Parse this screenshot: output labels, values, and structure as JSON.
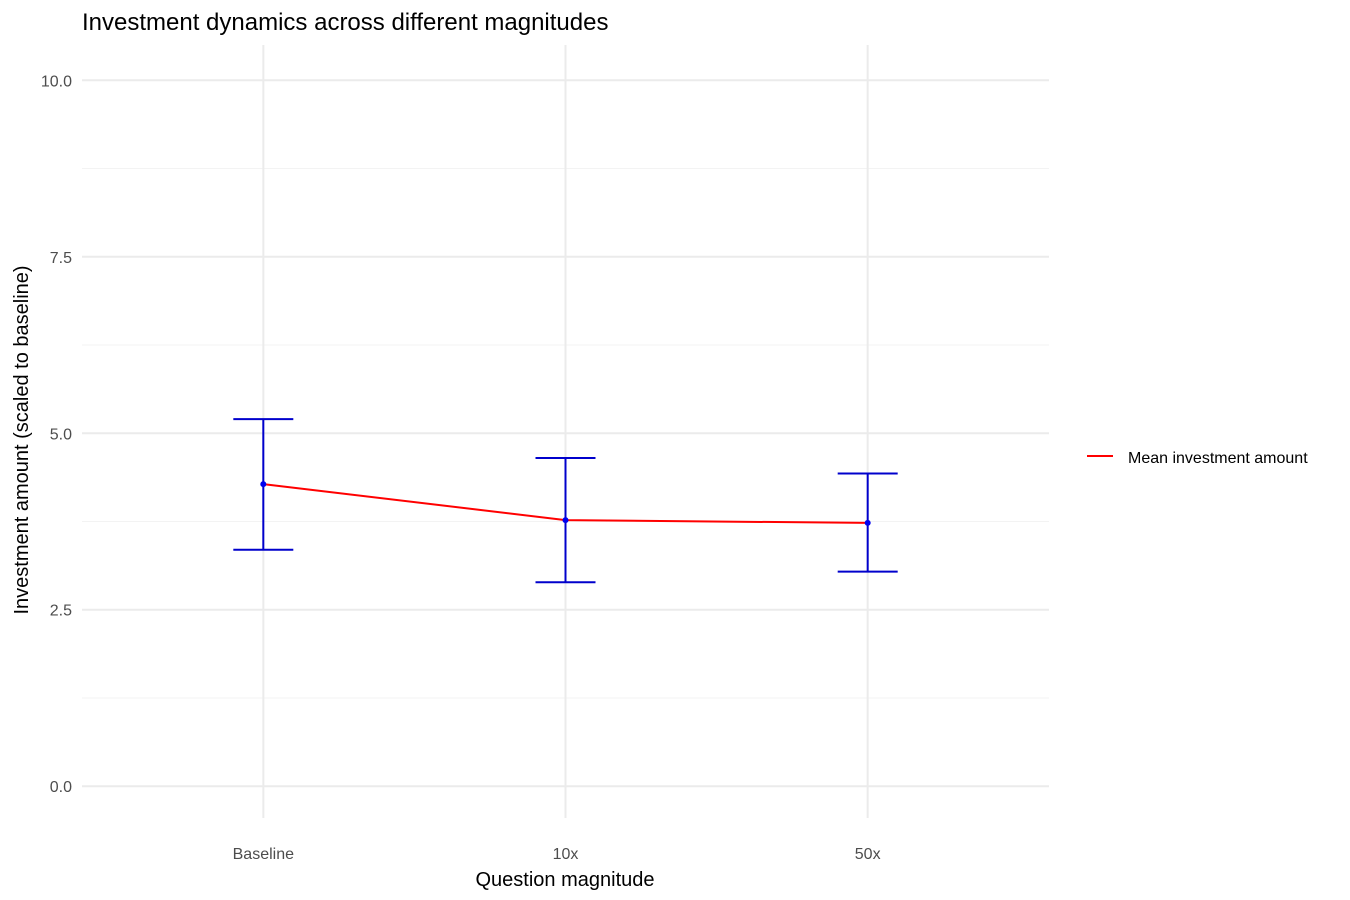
{
  "chart_data": {
    "type": "line",
    "title": "Investment dynamics across different magnitudes",
    "xlabel": "Question magnitude",
    "ylabel": "Investment amount (scaled to baseline)",
    "categories": [
      "Baseline",
      "10x",
      "50x"
    ],
    "ylim": [
      -0.45,
      10.5
    ],
    "yticks": [
      0.0,
      2.5,
      5.0,
      7.5,
      10.0
    ],
    "ytick_labels": [
      "0.0",
      "2.5",
      "5.0",
      "7.5",
      "10.0"
    ],
    "grid": true,
    "legend_position": "right",
    "series": [
      {
        "name": "Mean investment amount",
        "values": [
          4.28,
          3.77,
          3.73
        ],
        "error_lower": [
          3.35,
          2.89,
          3.04
        ],
        "error_upper": [
          5.2,
          4.65,
          4.43
        ]
      }
    ],
    "colors": {
      "line": "#ff0000",
      "error_bars": "#0000cc",
      "points": "#0000ee",
      "grid": "#ebebeb"
    }
  }
}
